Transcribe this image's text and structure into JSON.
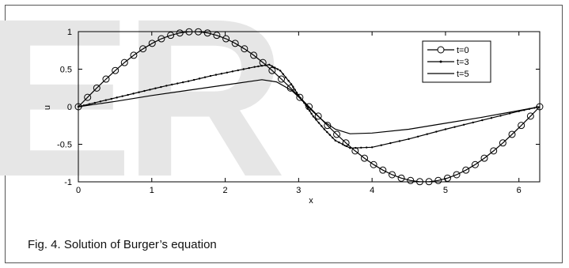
{
  "caption": "Fig. 4. Solution of Burger’s equation",
  "watermark": {
    "letters": "ER",
    "color": "#e6e6e6"
  },
  "chart_data": {
    "type": "line",
    "title": "",
    "xlabel": "x",
    "ylabel": "u",
    "xlim": [
      0,
      6.2832
    ],
    "ylim": [
      -1,
      1
    ],
    "xticks": [
      "0",
      "1",
      "2",
      "3",
      "4",
      "5",
      "6"
    ],
    "yticks": [
      "-1",
      "-0.5",
      "0",
      "0.5",
      "1"
    ],
    "grid": false,
    "legend_position": "top-right",
    "series": [
      {
        "name": "t=0",
        "marker": "circle",
        "color": "#000000",
        "x": [
          0,
          0.126,
          0.251,
          0.377,
          0.503,
          0.628,
          0.754,
          0.88,
          1.005,
          1.131,
          1.257,
          1.382,
          1.508,
          1.634,
          1.759,
          1.885,
          2.011,
          2.136,
          2.262,
          2.388,
          2.513,
          2.639,
          2.765,
          2.89,
          3.016,
          3.142,
          3.267,
          3.393,
          3.519,
          3.644,
          3.77,
          3.896,
          4.021,
          4.147,
          4.273,
          4.398,
          4.524,
          4.65,
          4.775,
          4.901,
          5.027,
          5.152,
          5.278,
          5.404,
          5.529,
          5.655,
          5.781,
          5.906,
          6.032,
          6.158,
          6.283
        ],
        "y": [
          0,
          0.125,
          0.249,
          0.368,
          0.482,
          0.588,
          0.685,
          0.771,
          0.844,
          0.905,
          0.951,
          0.982,
          0.998,
          0.998,
          0.982,
          0.951,
          0.905,
          0.844,
          0.771,
          0.685,
          0.588,
          0.482,
          0.368,
          0.249,
          0.125,
          0,
          -0.125,
          -0.249,
          -0.368,
          -0.482,
          -0.588,
          -0.685,
          -0.771,
          -0.844,
          -0.905,
          -0.951,
          -0.982,
          -0.998,
          -0.998,
          -0.982,
          -0.951,
          -0.905,
          -0.844,
          -0.771,
          -0.685,
          -0.588,
          -0.482,
          -0.368,
          -0.249,
          -0.125,
          0
        ]
      },
      {
        "name": "t=3",
        "marker": "dot",
        "color": "#000000",
        "x": [
          0,
          0.3,
          0.6,
          0.9,
          1.2,
          1.5,
          1.8,
          2.1,
          2.4,
          2.6,
          2.75,
          2.9,
          3.0,
          3.1,
          3.2,
          3.35,
          3.5,
          3.7,
          4.0,
          4.5,
          5.0,
          5.5,
          6.0,
          6.2832
        ],
        "y": [
          0,
          0.07,
          0.14,
          0.21,
          0.28,
          0.34,
          0.41,
          0.47,
          0.53,
          0.56,
          0.48,
          0.3,
          0.15,
          0.02,
          -0.13,
          -0.3,
          -0.45,
          -0.55,
          -0.54,
          -0.43,
          -0.3,
          -0.18,
          -0.06,
          0
        ]
      },
      {
        "name": "t=5",
        "marker": "none",
        "color": "#000000",
        "x": [
          0,
          0.5,
          1.0,
          1.5,
          2.0,
          2.5,
          2.7,
          2.9,
          3.0,
          3.1,
          3.2,
          3.35,
          3.5,
          3.7,
          4.0,
          4.5,
          5.0,
          5.5,
          6.0,
          6.2832
        ],
        "y": [
          0,
          0.07,
          0.15,
          0.22,
          0.29,
          0.36,
          0.33,
          0.22,
          0.13,
          0.03,
          -0.07,
          -0.2,
          -0.3,
          -0.36,
          -0.35,
          -0.3,
          -0.22,
          -0.14,
          -0.05,
          0
        ]
      }
    ]
  }
}
